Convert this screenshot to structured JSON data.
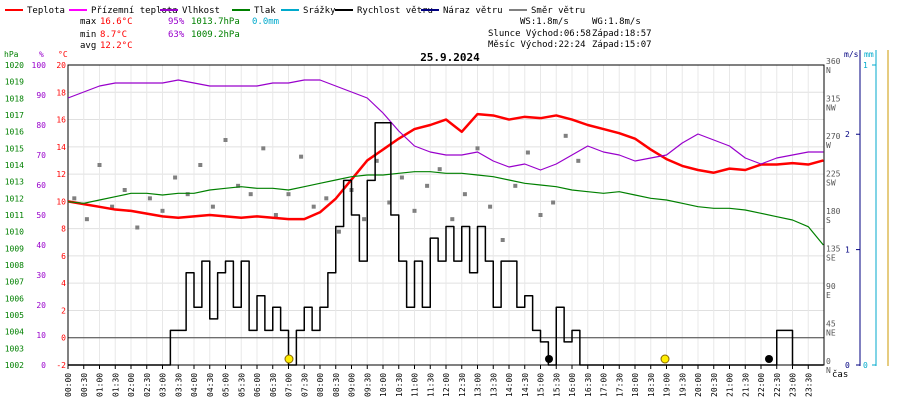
{
  "chart_data": {
    "type": "line",
    "title": "25.9.2024",
    "xlabel": "čas",
    "legend": [
      {
        "name": "Teplota",
        "color": "#ff0000"
      },
      {
        "name": "Přízemní teplota",
        "color": "#ff00ff"
      },
      {
        "name": "Vlhkost",
        "color": "#9900cc"
      },
      {
        "name": "Tlak",
        "color": "#008000"
      },
      {
        "name": "Srážky",
        "color": "#00aacc"
      },
      {
        "name": "Rychlost větru",
        "color": "#000000"
      },
      {
        "name": "Náraz větru",
        "color": "#000080"
      },
      {
        "name": "Směr větru",
        "color": "#808080"
      }
    ],
    "stats": {
      "max": {
        "label": "max",
        "temp": "16.6°C",
        "hum": "95%",
        "press": "1013.7hPa",
        "rain": "0.0mm"
      },
      "min": {
        "label": "min",
        "temp": "8.7°C",
        "hum": "63%",
        "press": "1009.2hPa"
      },
      "avg": {
        "label": "avg",
        "temp": "12.2°C"
      }
    },
    "info": {
      "ws": "WS:1.8m/s",
      "wg": "WG:1.8m/s",
      "sun_rise": "Slunce  Východ:06:58",
      "sun_set": "Západ:18:57",
      "moon_rise": "Měsíc  Východ:22:24",
      "moon_set": "Západ:15:07"
    },
    "axes": {
      "hpa": {
        "unit": "hPa",
        "ticks": [
          "1002",
          "1003",
          "1004",
          "1005",
          "1006",
          "1007",
          "1008",
          "1009",
          "1010",
          "1011",
          "1012",
          "1013",
          "1014",
          "1015",
          "1016",
          "1017",
          "1018",
          "1019",
          "1020"
        ],
        "ylim": [
          1002,
          1020
        ]
      },
      "pct": {
        "unit": "%",
        "ticks": [
          "0",
          "10",
          "20",
          "30",
          "40",
          "50",
          "60",
          "70",
          "80",
          "90",
          "100"
        ],
        "ylim": [
          0,
          100
        ]
      },
      "temp": {
        "unit": "°C",
        "ticks": [
          "-2",
          "0",
          "2",
          "4",
          "6",
          "8",
          "10",
          "12",
          "14",
          "16",
          "18",
          "20"
        ],
        "ylim": [
          -2,
          20
        ]
      },
      "dir": {
        "ticks": [
          {
            "deg": "0",
            "name": "N"
          },
          {
            "deg": "45",
            "name": "NE"
          },
          {
            "deg": "90",
            "name": "E"
          },
          {
            "deg": "135",
            "name": "SE"
          },
          {
            "deg": "180",
            "name": "S"
          },
          {
            "deg": "225",
            "name": "SW"
          },
          {
            "deg": "270",
            "name": "W"
          },
          {
            "deg": "315",
            "name": "NW"
          },
          {
            "deg": "360",
            "name": "N"
          }
        ]
      },
      "wind": {
        "unit": "m/s",
        "ticks": [
          "0",
          "1",
          "2"
        ],
        "ylim": [
          0,
          2.6
        ]
      },
      "rain": {
        "unit": "mm",
        "ticks": [
          "0",
          "1"
        ]
      }
    },
    "x_range_hours": [
      0,
      24
    ],
    "x_ticks": [
      "00:00",
      "00:30",
      "01:00",
      "01:30",
      "02:00",
      "02:30",
      "03:00",
      "03:30",
      "04:00",
      "04:30",
      "05:00",
      "05:30",
      "06:00",
      "06:30",
      "07:00",
      "07:30",
      "08:00",
      "08:30",
      "09:00",
      "09:30",
      "10:00",
      "10:30",
      "11:00",
      "11:30",
      "12:00",
      "12:30",
      "13:00",
      "13:30",
      "14:00",
      "14:30",
      "15:00",
      "15:30",
      "16:00",
      "16:30",
      "17:00",
      "17:30",
      "18:00",
      "18:30",
      "19:00",
      "19:30",
      "20:00",
      "20:30",
      "21:00",
      "21:30",
      "22:00",
      "22:30",
      "23:00",
      "23:30"
    ],
    "series": [
      {
        "name": "Teplota",
        "unit": "°C",
        "color": "#ff0000",
        "x": [
          0,
          0.5,
          1,
          1.5,
          2,
          2.5,
          3,
          3.5,
          4,
          4.5,
          5,
          5.5,
          6,
          6.5,
          7,
          7.5,
          8,
          8.5,
          9,
          9.5,
          10,
          10.5,
          11,
          11.5,
          12,
          12.5,
          13,
          13.5,
          14,
          14.5,
          15,
          15.5,
          16,
          16.5,
          17,
          17.5,
          18,
          18.5,
          19,
          19.5,
          20,
          20.5,
          21,
          21.5,
          22,
          22.5,
          23,
          23.5,
          23.98
        ],
        "y": [
          10.0,
          9.8,
          9.6,
          9.4,
          9.3,
          9.1,
          8.9,
          8.8,
          8.9,
          9.0,
          8.9,
          8.8,
          8.9,
          8.8,
          8.7,
          8.7,
          9.2,
          10.2,
          11.6,
          13.0,
          13.8,
          14.6,
          15.3,
          15.6,
          16.0,
          15.1,
          16.4,
          16.3,
          16.0,
          16.2,
          16.1,
          16.3,
          16.0,
          15.6,
          15.3,
          15.0,
          14.6,
          13.8,
          13.1,
          12.6,
          12.3,
          12.1,
          12.4,
          12.3,
          12.7,
          12.7,
          12.8,
          12.7,
          13.0
        ]
      },
      {
        "name": "Vlhkost",
        "unit": "%",
        "color": "#9900cc",
        "x": [
          0,
          0.5,
          1,
          1.5,
          2,
          2.5,
          3,
          3.5,
          4,
          4.5,
          5,
          5.5,
          6,
          6.5,
          7,
          7.5,
          8,
          8.5,
          9,
          9.5,
          10,
          10.5,
          11,
          11.5,
          12,
          12.5,
          13,
          13.5,
          14,
          14.5,
          15,
          15.5,
          16,
          16.5,
          17,
          17.5,
          18,
          18.5,
          19,
          19.5,
          20,
          20.5,
          21,
          21.5,
          22,
          22.5,
          23,
          23.5,
          23.98
        ],
        "y": [
          89,
          91,
          93,
          94,
          94,
          94,
          94,
          95,
          94,
          93,
          93,
          93,
          93,
          94,
          94,
          95,
          95,
          93,
          91,
          89,
          84,
          78,
          73,
          71,
          70,
          70,
          71,
          68,
          66,
          67,
          65,
          67,
          70,
          73,
          71,
          70,
          68,
          69,
          70,
          74,
          77,
          75,
          73,
          69,
          67,
          69,
          70,
          71,
          71
        ]
      },
      {
        "name": "Tlak",
        "unit": "hPa",
        "color": "#008000",
        "x": [
          0,
          0.5,
          1,
          1.5,
          2,
          2.5,
          3,
          3.5,
          4,
          4.5,
          5,
          5.5,
          6,
          6.5,
          7,
          7.5,
          8,
          8.5,
          9,
          9.5,
          10,
          10.5,
          11,
          11.5,
          12,
          12.5,
          13,
          13.5,
          14,
          14.5,
          15,
          15.5,
          16,
          16.5,
          17,
          17.5,
          18,
          18.5,
          19,
          19.5,
          20,
          20.5,
          21,
          21.5,
          22,
          22.5,
          23,
          23.5,
          23.98
        ],
        "y": [
          1011.8,
          1011.7,
          1011.9,
          1012.1,
          1012.3,
          1012.3,
          1012.2,
          1012.3,
          1012.3,
          1012.5,
          1012.6,
          1012.7,
          1012.6,
          1012.6,
          1012.5,
          1012.7,
          1012.9,
          1013.1,
          1013.3,
          1013.4,
          1013.4,
          1013.5,
          1013.6,
          1013.6,
          1013.5,
          1013.5,
          1013.4,
          1013.3,
          1013.1,
          1012.9,
          1012.8,
          1012.7,
          1012.5,
          1012.4,
          1012.3,
          1012.4,
          1012.2,
          1012.0,
          1011.9,
          1011.7,
          1011.5,
          1011.4,
          1011.4,
          1011.3,
          1011.1,
          1010.9,
          1010.7,
          1010.3,
          1009.2
        ]
      },
      {
        "name": "Rychlost větru",
        "unit": "m/s",
        "color": "#000000",
        "x": [
          0,
          0.5,
          1,
          1.5,
          2,
          2.5,
          3,
          3.25,
          3.5,
          3.75,
          4,
          4.25,
          4.5,
          4.75,
          5,
          5.25,
          5.5,
          5.75,
          6,
          6.25,
          6.5,
          6.75,
          7,
          7.25,
          7.5,
          7.75,
          8,
          8.25,
          8.5,
          8.75,
          9,
          9.25,
          9.5,
          9.75,
          10,
          10.25,
          10.5,
          10.75,
          11,
          11.25,
          11.5,
          11.75,
          12,
          12.25,
          12.5,
          12.75,
          13,
          13.25,
          13.5,
          13.75,
          14,
          14.25,
          14.5,
          14.75,
          15,
          15.25,
          15.5,
          15.75,
          16,
          16.25,
          16.5,
          17,
          18,
          19,
          20,
          21,
          22,
          22.25,
          22.5,
          22.75,
          23,
          23.5,
          23.98
        ],
        "y": [
          0,
          0,
          0,
          0,
          0,
          0,
          0,
          0.3,
          0.3,
          0.8,
          0.5,
          0.9,
          0.4,
          0.8,
          0.9,
          0.5,
          0.9,
          0.3,
          0.6,
          0.3,
          0.5,
          0.3,
          0,
          0.3,
          0.5,
          0.3,
          0.5,
          0.8,
          1.2,
          1.6,
          1.3,
          0.9,
          1.6,
          2.1,
          2.1,
          1.3,
          0.9,
          0.5,
          0.9,
          0.5,
          1.1,
          0.9,
          1.2,
          0.9,
          1.2,
          0.8,
          1.2,
          0.9,
          0.5,
          0.9,
          0.9,
          0.5,
          0.6,
          0.3,
          0.2,
          0,
          0.5,
          0.2,
          0.3,
          0,
          0,
          0,
          0,
          0,
          0,
          0,
          0,
          0,
          0.3,
          0.3,
          0,
          0,
          0
        ]
      },
      {
        "name": "Směr větru",
        "unit": "°",
        "color": "#808080",
        "x": [
          0.2,
          0.6,
          1.0,
          1.4,
          1.8,
          2.2,
          2.6,
          3.0,
          3.4,
          3.8,
          4.2,
          4.6,
          5.0,
          5.4,
          5.8,
          6.2,
          6.6,
          7.0,
          7.4,
          7.8,
          8.2,
          8.6,
          9.0,
          9.4,
          9.8,
          10.2,
          10.6,
          11.0,
          11.4,
          11.8,
          12.2,
          12.6,
          13.0,
          13.4,
          13.8,
          14.2,
          14.6,
          15.0,
          15.4,
          15.8,
          16.2
        ],
        "y": [
          200,
          175,
          240,
          190,
          210,
          165,
          200,
          185,
          225,
          205,
          240,
          190,
          270,
          215,
          205,
          260,
          180,
          205,
          250,
          190,
          200,
          160,
          210,
          175,
          245,
          195,
          225,
          185,
          215,
          235,
          175,
          205,
          260,
          190,
          150,
          215,
          255,
          180,
          195,
          275,
          245
        ]
      }
    ]
  }
}
